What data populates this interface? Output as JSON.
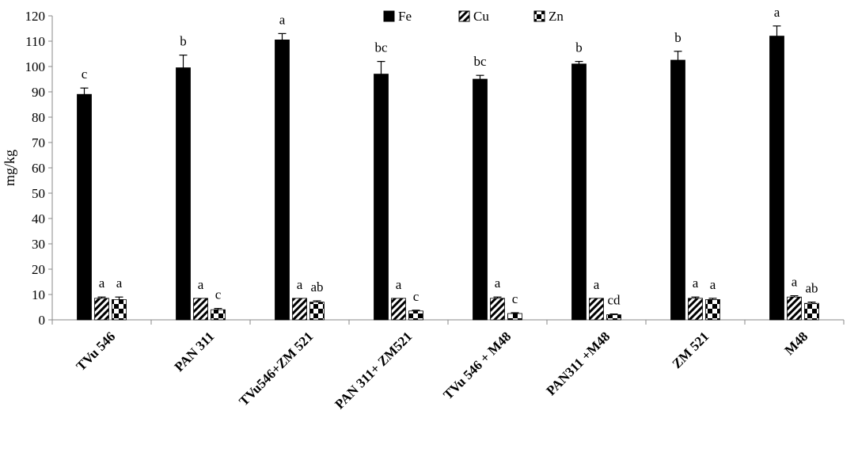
{
  "chart_data": {
    "type": "bar",
    "title": "",
    "xlabel": "",
    "ylabel": "mg/kg",
    "ylim": [
      0,
      120
    ],
    "yticks": [
      0,
      10,
      20,
      30,
      40,
      50,
      60,
      70,
      80,
      90,
      100,
      110,
      120
    ],
    "grid": false,
    "legend_position": "top-right",
    "categories": [
      "TVu 546",
      "PAN 311",
      "TVu546+ZM 521",
      "PAN 311+ ZM521",
      "TVu 546 + M48",
      "PAN311 +M48",
      "ZM 521",
      "M48"
    ],
    "series": [
      {
        "name": "Fe",
        "pattern": "solid",
        "color": "#000000",
        "values": [
          89,
          99.5,
          110.5,
          97,
          95,
          101,
          102.5,
          112
        ],
        "errors": [
          2.5,
          5,
          2.5,
          5,
          1.5,
          1,
          3.5,
          4
        ],
        "letters": [
          "c",
          "b",
          "a",
          "bc",
          "bc",
          "b",
          "b",
          "a"
        ]
      },
      {
        "name": "Cu",
        "pattern": "diagonal-hatch",
        "color": "#000000",
        "values": [
          8.5,
          8.5,
          8.5,
          8.5,
          8.5,
          8.5,
          8.5,
          9
        ],
        "errors": [
          0.5,
          0,
          0,
          0,
          0.5,
          0,
          0.5,
          0.5
        ],
        "letters": [
          "a",
          "a",
          "a",
          "a",
          "a",
          "a",
          "a",
          "a"
        ]
      },
      {
        "name": "Zn",
        "pattern": "checker",
        "color": "#000000",
        "values": [
          8,
          4,
          7,
          3.5,
          2.5,
          2,
          8,
          6.5
        ],
        "errors": [
          1,
          0.5,
          0.5,
          0.3,
          0.3,
          0.3,
          0.5,
          0.5
        ],
        "letters": [
          "a",
          "c",
          "ab",
          "c",
          "c",
          "cd",
          "a",
          "ab"
        ]
      }
    ]
  }
}
